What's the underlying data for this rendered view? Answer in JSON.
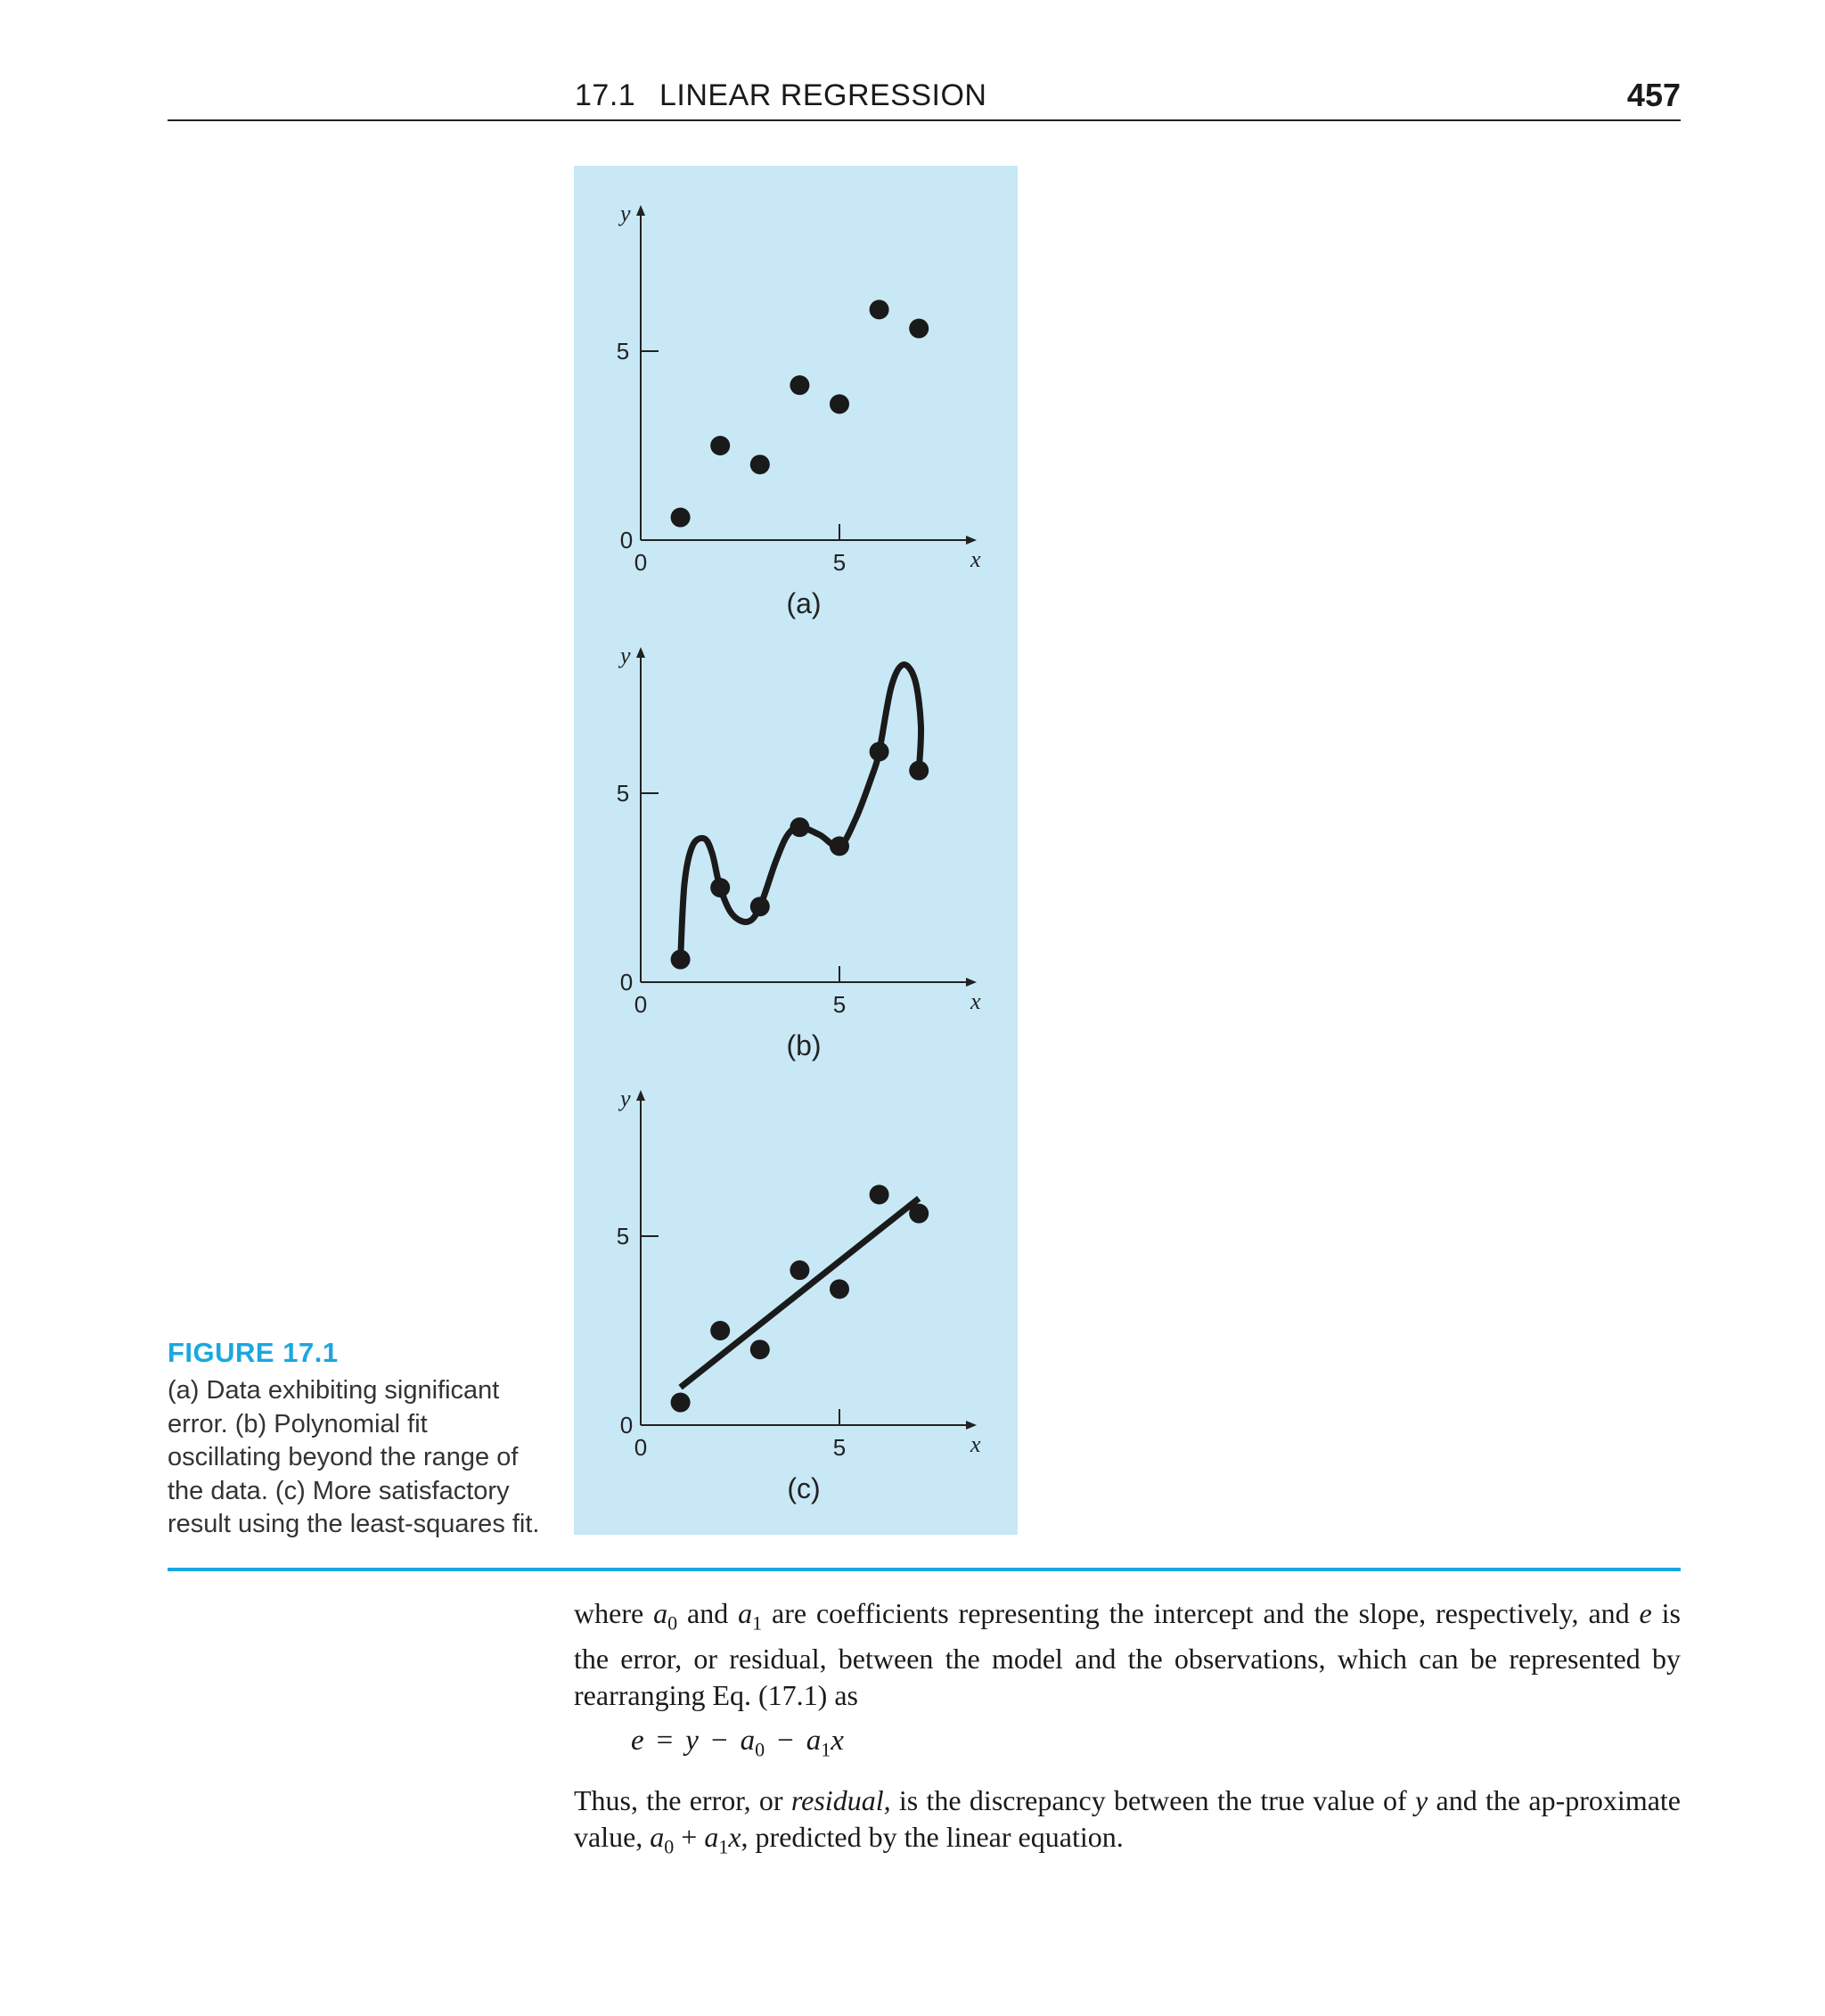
{
  "header": {
    "section_number": "17.1",
    "section_title": "LINEAR REGRESSION",
    "page_number": "457"
  },
  "figure": {
    "label": "FIGURE 17.1",
    "caption": "(a) Data exhibiting significant error. (b) Polynomial fit oscillating beyond the range of the data. (c) More satisfactory result using the least-squares fit.",
    "background_color": "#c8e8f6"
  },
  "chart_data": [
    {
      "type": "scatter",
      "panel_label": "(a)",
      "xlabel": "x",
      "ylabel": "y",
      "x_ticks": [
        "0",
        "5"
      ],
      "y_ticks": [
        "0",
        "5"
      ],
      "xlim": [
        0,
        8.8
      ],
      "ylim": [
        0,
        8.8
      ],
      "points": [
        [
          1,
          0.6
        ],
        [
          2,
          2.5
        ],
        [
          3,
          2.0
        ],
        [
          4,
          4.1
        ],
        [
          5,
          3.6
        ],
        [
          6,
          6.1
        ],
        [
          7,
          5.6
        ]
      ]
    },
    {
      "type": "line",
      "panel_label": "(b)",
      "xlabel": "x",
      "ylabel": "y",
      "x_ticks": [
        "0",
        "5"
      ],
      "y_ticks": [
        "0",
        "5"
      ],
      "xlim": [
        0,
        8.8
      ],
      "ylim": [
        0,
        8.8
      ],
      "points": [
        [
          1,
          0.6
        ],
        [
          2,
          2.5
        ],
        [
          3,
          2.0
        ],
        [
          4,
          4.1
        ],
        [
          5,
          3.6
        ],
        [
          6,
          6.1
        ],
        [
          7,
          5.6
        ]
      ],
      "curve": [
        [
          1,
          0.6
        ],
        [
          1.1,
          2.6
        ],
        [
          1.3,
          3.6
        ],
        [
          1.6,
          3.8
        ],
        [
          1.8,
          3.4
        ],
        [
          2,
          2.5
        ],
        [
          2.3,
          1.8
        ],
        [
          2.7,
          1.6
        ],
        [
          3,
          2.0
        ],
        [
          3.4,
          3.2
        ],
        [
          3.7,
          3.9
        ],
        [
          4,
          4.1
        ],
        [
          4.5,
          3.9
        ],
        [
          5,
          3.6
        ],
        [
          5.4,
          4.3
        ],
        [
          5.8,
          5.4
        ],
        [
          6,
          6.1
        ],
        [
          6.3,
          7.8
        ],
        [
          6.6,
          8.4
        ],
        [
          6.9,
          8.0
        ],
        [
          7.05,
          6.8
        ],
        [
          7,
          5.6
        ]
      ]
    },
    {
      "type": "scatter",
      "panel_label": "(c)",
      "xlabel": "x",
      "ylabel": "y",
      "x_ticks": [
        "0",
        "5"
      ],
      "y_ticks": [
        "0",
        "5"
      ],
      "xlim": [
        0,
        8.8
      ],
      "ylim": [
        0,
        8.8
      ],
      "points": [
        [
          1,
          0.6
        ],
        [
          2,
          2.5
        ],
        [
          3,
          2.0
        ],
        [
          4,
          4.1
        ],
        [
          5,
          3.6
        ],
        [
          6,
          6.1
        ],
        [
          7,
          5.6
        ]
      ],
      "fit_line": [
        [
          1,
          1.0
        ],
        [
          7.0,
          6.0
        ]
      ]
    }
  ],
  "text": {
    "para1": [
      {
        "t": "where "
      },
      {
        "t": "a",
        "i": true
      },
      {
        "t": "0",
        "sub": true
      },
      {
        "t": " and "
      },
      {
        "t": "a",
        "i": true
      },
      {
        "t": "1",
        "sub": true
      },
      {
        "t": " are coefficients representing the intercept and the slope, respectively, and "
      },
      {
        "t": "e",
        "i": true
      },
      {
        "t": " is the error, or residual, between the model and the observations, which can be represented by rearranging Eq. (17.1) as"
      }
    ],
    "equation": [
      {
        "t": "e",
        "i": true
      },
      {
        "t": "=",
        "op": true
      },
      {
        "t": "y",
        "i": true
      },
      {
        "t": "−",
        "op": true
      },
      {
        "t": "a",
        "i": true
      },
      {
        "t": "0",
        "sub": true
      },
      {
        "t": "−",
        "op": true
      },
      {
        "t": "a",
        "i": true
      },
      {
        "t": "1",
        "sub": true
      },
      {
        "t": "x",
        "i": true
      }
    ],
    "para2": [
      {
        "t": "Thus, the error, or "
      },
      {
        "t": "residual,",
        "i": true
      },
      {
        "t": " is the discrepancy between the true value of "
      },
      {
        "t": "y",
        "i": true
      },
      {
        "t": " and the ap-proximate value, "
      },
      {
        "t": "a",
        "i": true
      },
      {
        "t": "0",
        "sub": true
      },
      {
        "t": " + "
      },
      {
        "t": "a",
        "i": true
      },
      {
        "t": "1",
        "sub": true
      },
      {
        "t": "x",
        "i": true
      },
      {
        "t": ", predicted by the linear equation."
      }
    ]
  }
}
